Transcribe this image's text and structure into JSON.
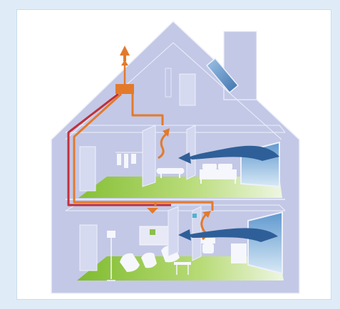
{
  "diagram": {
    "colors": {
      "background_frame": "#d7e8f5",
      "panel": "#ffffff",
      "house_fill": "#c3c9e6",
      "house_outline": "#e8ebf7",
      "exhaust_duct": "#e37a2b",
      "return_duct": "#c0303a",
      "fresh_air_arrow": "#2f5f98",
      "floor_green": "#8fc53a",
      "window_sky": "#7fb0d8"
    },
    "elements": [
      "house-silhouette",
      "chimney",
      "roof-skylight",
      "ventilation-unit",
      "exhaust-outlet-arrow",
      "extract-duct",
      "supply-duct",
      "fresh-air-arrow-upper",
      "fresh-air-arrow-lower",
      "extract-arrow-upper",
      "extract-arrow-lower-left",
      "extract-arrow-lower-right",
      "bathroom-upper",
      "bedroom-upper",
      "living-room-lower",
      "bathroom-lower"
    ]
  }
}
